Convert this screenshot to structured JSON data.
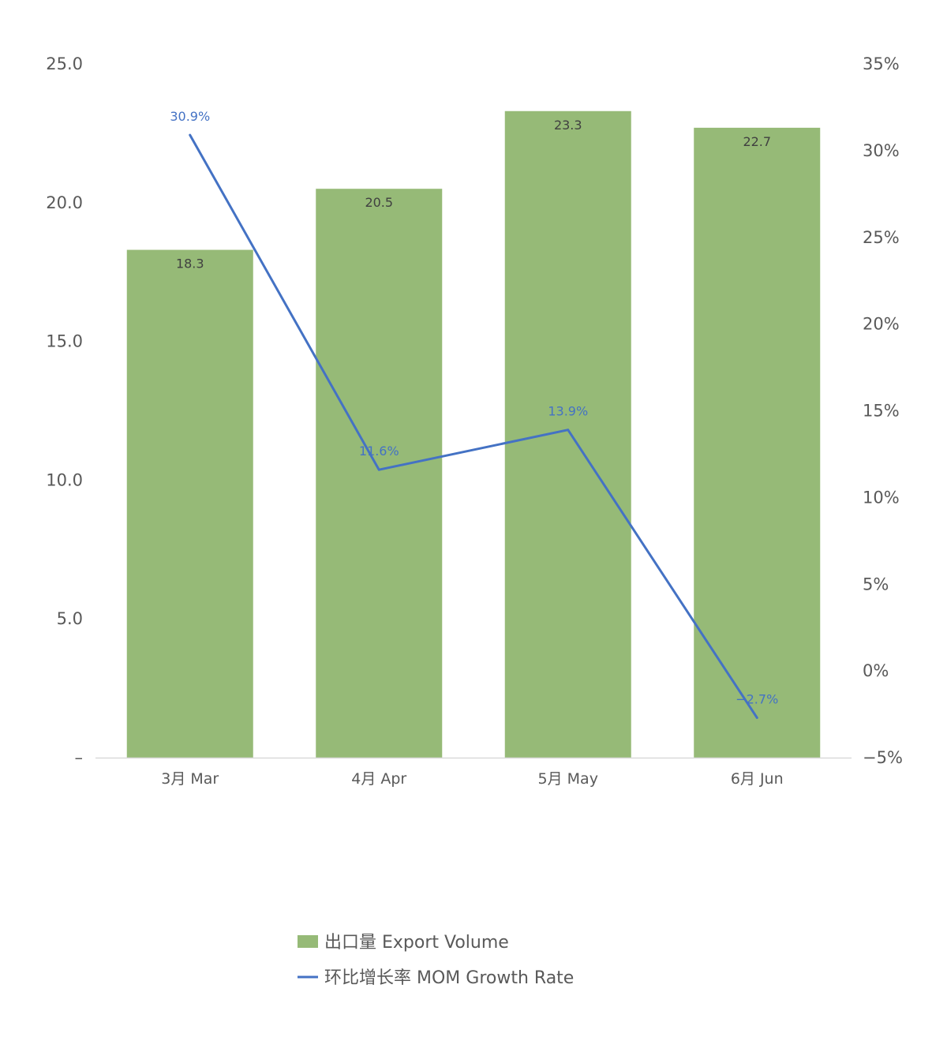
{
  "chart_data": {
    "type": "bar",
    "categories": [
      "3月 Mar",
      "4月 Apr",
      "5月 May",
      "6月 Jun"
    ],
    "series": [
      {
        "name": "出口量 Export Volume",
        "type": "bar",
        "axis": "left",
        "values": [
          18.3,
          20.5,
          23.3,
          22.7
        ],
        "data_labels": [
          "18.3",
          "20.5",
          "23.3",
          "22.7"
        ]
      },
      {
        "name": "环比增长率 MOM Growth Rate",
        "type": "line",
        "axis": "right",
        "values": [
          30.9,
          11.6,
          13.9,
          -2.7
        ],
        "data_labels": [
          "30.9%",
          "11.6%",
          "13.9%",
          "−2.7%"
        ]
      }
    ],
    "y_left": {
      "ylim": [
        0,
        25
      ],
      "ticks": [
        0,
        5,
        10,
        15,
        20,
        25
      ],
      "tick_labels": [
        "–",
        "5.0",
        "10.0",
        "15.0",
        "20.0",
        "25.0"
      ]
    },
    "y_right": {
      "ylim": [
        -5,
        35
      ],
      "ticks": [
        -5,
        0,
        5,
        10,
        15,
        20,
        25,
        30,
        35
      ],
      "tick_labels": [
        "−5%",
        "0%",
        "5%",
        "10%",
        "15%",
        "20%",
        "25%",
        "30%",
        "35%"
      ]
    },
    "title": "",
    "xlabel": "",
    "ylabel": "",
    "grid": false,
    "legend_position": "bottom-center",
    "colors": {
      "bar": "#96BA77",
      "line": "#4472C4",
      "axis": "#D9D9D9",
      "text": "#595959"
    }
  }
}
